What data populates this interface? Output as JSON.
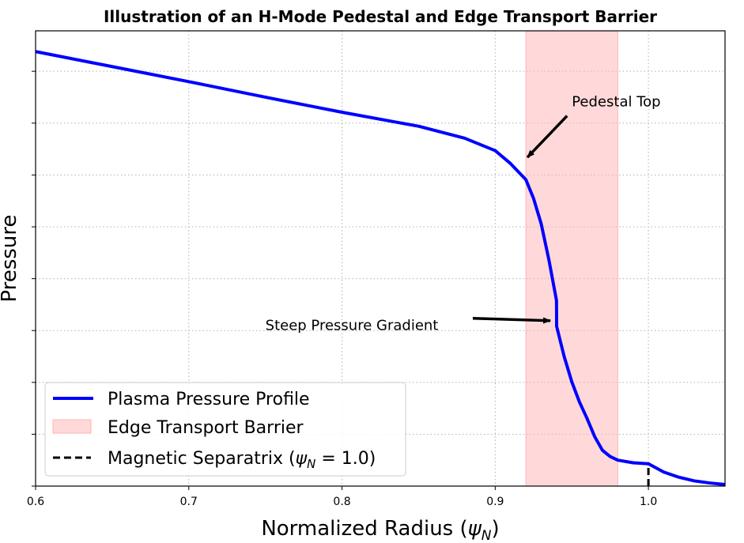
{
  "chart_data": {
    "type": "line",
    "title": "Illustration of an H-Mode Pedestal and Edge Transport Barrier",
    "xlabel": "Normalized Radius (",
    "xlabel_symbol": "ψ",
    "xlabel_sub": "N",
    "xlabel_end": ")",
    "ylabel": "Pressure",
    "xlim": [
      0.6,
      1.05
    ],
    "ylim": [
      0,
      8.78
    ],
    "xticks": [
      0.6,
      0.7,
      0.8,
      0.9,
      1.0
    ],
    "xtick_labels": [
      "0.6",
      "0.7",
      "0.8",
      "0.9",
      "1.0"
    ],
    "yticks": [
      0,
      1,
      2,
      3,
      4,
      5,
      6,
      7,
      8
    ],
    "ytick_labels_shown": false,
    "grid": true,
    "series": [
      {
        "name": "Plasma Pressure Profile",
        "color": "#0000ff",
        "x": [
          0.6,
          0.65,
          0.7,
          0.75,
          0.8,
          0.85,
          0.88,
          0.9,
          0.91,
          0.92,
          0.925,
          0.93,
          0.935,
          0.94,
          0.9401,
          0.945,
          0.95,
          0.955,
          0.96,
          0.965,
          0.97,
          0.975,
          0.98,
          0.99,
          1.0,
          1.01,
          1.02,
          1.03,
          1.04,
          1.05
        ],
        "y": [
          8.38,
          8.09,
          7.8,
          7.5,
          7.21,
          6.94,
          6.71,
          6.47,
          6.22,
          5.91,
          5.55,
          5.06,
          4.37,
          3.58,
          3.08,
          2.5,
          2.01,
          1.62,
          1.3,
          0.95,
          0.69,
          0.57,
          0.5,
          0.45,
          0.43,
          0.27,
          0.17,
          0.1,
          0.06,
          0.03
        ]
      }
    ],
    "shaded_region": {
      "name": "Edge Transport Barrier",
      "x": [
        0.92,
        0.98
      ],
      "color": "#ffb3b3"
    },
    "vline": {
      "name": "Magnetic Separatrix",
      "label_math": "ψ",
      "label_sub": "N",
      "label_value": " = 1.0)",
      "x": 1.0,
      "color": "#000000",
      "style": "dashed"
    },
    "legend": {
      "placement": "lower-left",
      "entries": [
        "Plasma Pressure Profile",
        "Edge Transport Barrier",
        "Magnetic Separatrix ("
      ]
    },
    "annotations": [
      {
        "text": "Pedestal Top",
        "xy": [
          0.921,
          6.34
        ],
        "xytext": [
          0.95,
          7.4
        ]
      },
      {
        "text": "Steep Pressure Gradient",
        "xy": [
          0.936,
          3.19
        ],
        "xytext": [
          0.75,
          3.1
        ]
      }
    ]
  }
}
